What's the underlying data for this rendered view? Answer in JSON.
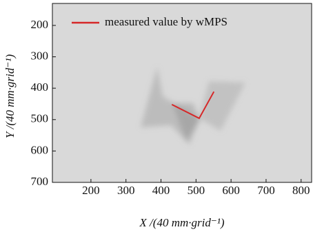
{
  "chart_data": {
    "type": "line",
    "x_label": "X /(40 mm·grid⁻¹)",
    "y_label": "Y /(40 mm·grid⁻¹)",
    "xlim": [
      90,
      830
    ],
    "ylim": [
      700,
      130
    ],
    "xticks": [
      200,
      300,
      400,
      500,
      600,
      700,
      800
    ],
    "yticks": [
      200,
      300,
      400,
      500,
      600,
      700
    ],
    "legend": "upper left",
    "series": [
      {
        "name": "measured value by wMPS",
        "color": "#d62728",
        "x": [
          431,
          509,
          551
        ],
        "values": [
          452,
          496,
          411
        ]
      }
    ]
  }
}
